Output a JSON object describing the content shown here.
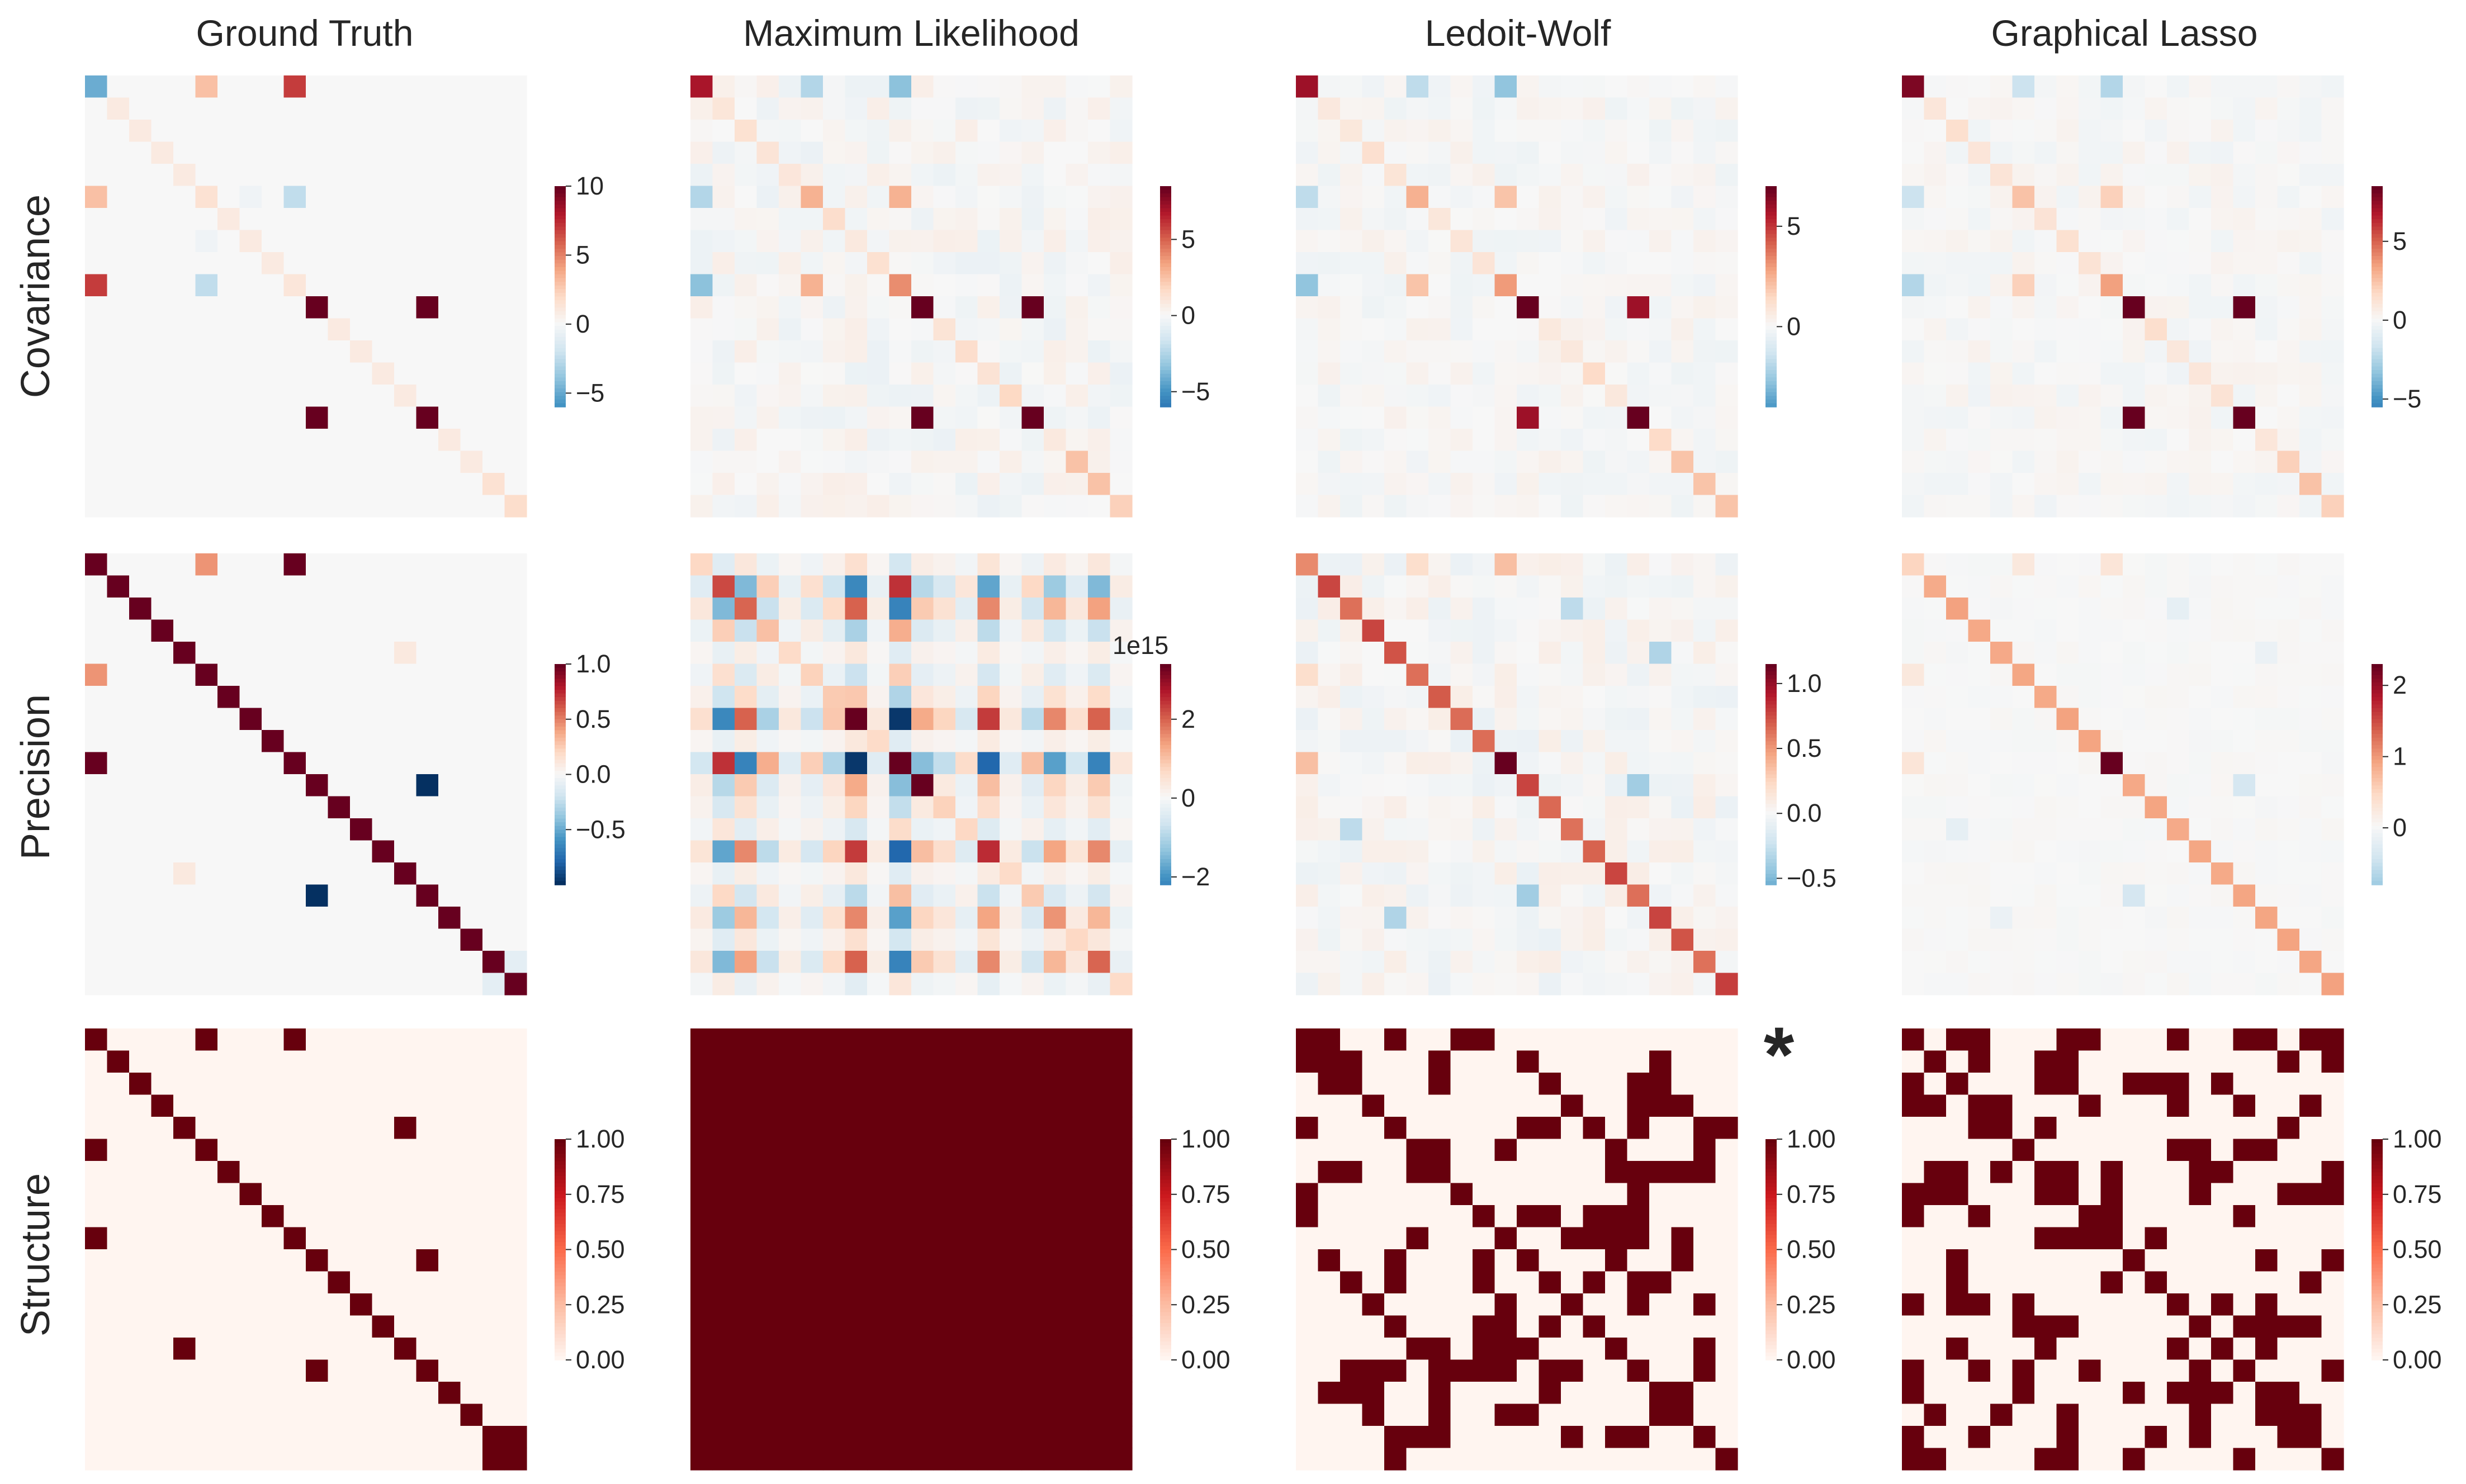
{
  "figure": {
    "column_titles": [
      "Ground Truth",
      "Maximum Likelihood",
      "Ledoit-Wolf",
      "Graphical Lasso"
    ],
    "row_labels": [
      "Covariance",
      "Precision",
      "Structure"
    ],
    "annotation": "*",
    "colormap": "RdBu_r"
  },
  "chart_data": [
    {
      "type": "heatmap",
      "row": "Covariance",
      "column": "Ground Truth",
      "vmin": -6,
      "vmax": 10,
      "colorbar_ticks": [
        {
          "v": 10,
          "label": "10"
        },
        {
          "v": 5,
          "label": "5"
        },
        {
          "v": 0,
          "label": "0"
        },
        {
          "v": -5,
          "label": "−5"
        }
      ],
      "colorbar_offset_label": "",
      "diag": 0.9,
      "entries": [
        {
          "i": 0,
          "j": 0,
          "v": -5
        },
        {
          "i": 0,
          "j": 5,
          "v": 3
        },
        {
          "i": 0,
          "j": 9,
          "v": 7
        },
        {
          "i": 5,
          "j": 5,
          "v": 1.5
        },
        {
          "i": 5,
          "j": 9,
          "v": -2.5
        },
        {
          "i": 9,
          "j": 9,
          "v": 1.2
        },
        {
          "i": 10,
          "j": 10,
          "v": 18
        },
        {
          "i": 10,
          "j": 15,
          "v": 18
        },
        {
          "i": 15,
          "j": 15,
          "v": 18
        },
        {
          "i": 5,
          "j": 7,
          "v": -0.4
        },
        {
          "i": 19,
          "j": 19,
          "v": 1.8
        },
        {
          "i": 18,
          "j": 18,
          "v": 1.5
        }
      ]
    },
    {
      "type": "heatmap",
      "row": "Covariance",
      "column": "Maximum Likelihood",
      "vmin": -6,
      "vmax": 8.5,
      "colorbar_ticks": [
        {
          "v": 5,
          "label": "5"
        },
        {
          "v": 0,
          "label": "0"
        },
        {
          "v": -5,
          "label": "−5"
        }
      ],
      "colorbar_offset_label": "",
      "diag": 1.2,
      "seed": 7,
      "noise": 0.55,
      "entries": [
        {
          "i": 0,
          "j": 0,
          "v": 7
        },
        {
          "i": 0,
          "j": 5,
          "v": -2.5
        },
        {
          "i": 0,
          "j": 9,
          "v": -3.5
        },
        {
          "i": 5,
          "j": 5,
          "v": 3
        },
        {
          "i": 5,
          "j": 9,
          "v": 3
        },
        {
          "i": 9,
          "j": 9,
          "v": 4
        },
        {
          "i": 10,
          "j": 10,
          "v": 10
        },
        {
          "i": 10,
          "j": 15,
          "v": 10
        },
        {
          "i": 15,
          "j": 15,
          "v": 10
        },
        {
          "i": 17,
          "j": 17,
          "v": 2.5
        },
        {
          "i": 18,
          "j": 18,
          "v": 2.5
        },
        {
          "i": 19,
          "j": 19,
          "v": 2
        }
      ]
    },
    {
      "type": "heatmap",
      "row": "Covariance",
      "column": "Ledoit-Wolf",
      "vmin": -4,
      "vmax": 7,
      "colorbar_ticks": [
        {
          "v": 5,
          "label": "5"
        },
        {
          "v": 0,
          "label": "0"
        }
      ],
      "colorbar_offset_label": "",
      "diag": 1.0,
      "seed": 11,
      "noise": 0.35,
      "entries": [
        {
          "i": 0,
          "j": 0,
          "v": 6
        },
        {
          "i": 0,
          "j": 5,
          "v": -1.8
        },
        {
          "i": 0,
          "j": 9,
          "v": -2.8
        },
        {
          "i": 5,
          "j": 5,
          "v": 2.5
        },
        {
          "i": 5,
          "j": 9,
          "v": 2
        },
        {
          "i": 9,
          "j": 9,
          "v": 3
        },
        {
          "i": 10,
          "j": 10,
          "v": 8
        },
        {
          "i": 10,
          "j": 15,
          "v": 6
        },
        {
          "i": 15,
          "j": 15,
          "v": 7
        },
        {
          "i": 17,
          "j": 17,
          "v": 2
        },
        {
          "i": 18,
          "j": 18,
          "v": 2
        },
        {
          "i": 19,
          "j": 19,
          "v": 2
        }
      ]
    },
    {
      "type": "heatmap",
      "row": "Covariance",
      "column": "Graphical Lasso",
      "vmin": -5.5,
      "vmax": 8.5,
      "colorbar_ticks": [
        {
          "v": 5,
          "label": "5"
        },
        {
          "v": 0,
          "label": "0"
        },
        {
          "v": -5,
          "label": "−5"
        }
      ],
      "colorbar_offset_label": "",
      "diag": 1.1,
      "seed": 23,
      "noise": 0.35,
      "entries": [
        {
          "i": 0,
          "j": 0,
          "v": 8
        },
        {
          "i": 0,
          "j": 5,
          "v": -1.8
        },
        {
          "i": 0,
          "j": 9,
          "v": -2.5
        },
        {
          "i": 5,
          "j": 5,
          "v": 2.5
        },
        {
          "i": 5,
          "j": 9,
          "v": 2
        },
        {
          "i": 9,
          "j": 9,
          "v": 3.5
        },
        {
          "i": 10,
          "j": 10,
          "v": 10
        },
        {
          "i": 10,
          "j": 15,
          "v": 9
        },
        {
          "i": 15,
          "j": 15,
          "v": 9
        },
        {
          "i": 17,
          "j": 17,
          "v": 2
        },
        {
          "i": 18,
          "j": 18,
          "v": 2.5
        },
        {
          "i": 19,
          "j": 19,
          "v": 2
        }
      ]
    },
    {
      "type": "heatmap",
      "row": "Precision",
      "column": "Ground Truth",
      "vmin": -1,
      "vmax": 1,
      "colorbar_ticks": [
        {
          "v": 1,
          "label": "1.0"
        },
        {
          "v": 0.5,
          "label": "0.5"
        },
        {
          "v": 0,
          "label": "0.0"
        },
        {
          "v": -0.5,
          "label": "−0.5"
        }
      ],
      "colorbar_offset_label": "",
      "diag": 1.0,
      "entries": [
        {
          "i": 0,
          "j": 5,
          "v": 0.45
        },
        {
          "i": 0,
          "j": 9,
          "v": 1
        },
        {
          "i": 10,
          "j": 15,
          "v": -1
        },
        {
          "i": 4,
          "j": 14,
          "v": 0.1
        },
        {
          "i": 18,
          "j": 19,
          "v": -0.1
        }
      ]
    },
    {
      "type": "heatmap",
      "row": "Precision",
      "column": "Maximum Likelihood",
      "vmin": -2.2,
      "vmax": 3.4,
      "colorbar_ticks": [
        {
          "v": 2,
          "label": "2"
        },
        {
          "v": 0,
          "label": "0"
        },
        {
          "v": -2,
          "label": "−2"
        }
      ],
      "colorbar_offset_label": "1e15",
      "diag": 0.3,
      "seed": 29,
      "noise": 0.15,
      "entries": []
    },
    {
      "type": "heatmap",
      "row": "Precision",
      "column": "Ledoit-Wolf",
      "vmin": -0.55,
      "vmax": 1.15,
      "colorbar_ticks": [
        {
          "v": 1,
          "label": "1.0"
        },
        {
          "v": 0.5,
          "label": "0.5"
        },
        {
          "v": 0,
          "label": "0.0"
        },
        {
          "v": -0.5,
          "label": "−0.5"
        }
      ],
      "colorbar_offset_label": "",
      "diag": 0.7,
      "seed": 31,
      "noise": 0.08,
      "entries": [
        {
          "i": 0,
          "j": 0,
          "v": 0.55
        },
        {
          "i": 0,
          "j": 5,
          "v": 0.2
        },
        {
          "i": 0,
          "j": 9,
          "v": 0.35
        },
        {
          "i": 9,
          "j": 9,
          "v": 1.15
        },
        {
          "i": 10,
          "j": 15,
          "v": -0.4
        },
        {
          "i": 4,
          "j": 16,
          "v": -0.35
        },
        {
          "i": 2,
          "j": 12,
          "v": -0.3
        },
        {
          "i": 19,
          "j": 19,
          "v": 0.8
        }
      ]
    },
    {
      "type": "heatmap",
      "row": "Precision",
      "column": "Graphical Lasso",
      "vmin": -0.8,
      "vmax": 2.3,
      "colorbar_ticks": [
        {
          "v": 2,
          "label": "2"
        },
        {
          "v": 1,
          "label": "1"
        },
        {
          "v": 0,
          "label": "0"
        }
      ],
      "colorbar_offset_label": "",
      "diag": 0.9,
      "seed": 37,
      "noise": 0.04,
      "entries": [
        {
          "i": 0,
          "j": 0,
          "v": 0.5
        },
        {
          "i": 0,
          "j": 5,
          "v": 0.25
        },
        {
          "i": 0,
          "j": 9,
          "v": 0.3
        },
        {
          "i": 9,
          "j": 9,
          "v": 2.3
        },
        {
          "i": 10,
          "j": 15,
          "v": -0.4
        },
        {
          "i": 2,
          "j": 12,
          "v": -0.2
        },
        {
          "i": 4,
          "j": 16,
          "v": -0.15
        }
      ]
    },
    {
      "type": "heatmap",
      "row": "Structure",
      "column": "Ground Truth",
      "vmin": 0,
      "vmax": 1,
      "colorbar_ticks": [
        {
          "v": 1,
          "label": "1.00"
        },
        {
          "v": 0.75,
          "label": "0.75"
        },
        {
          "v": 0.5,
          "label": "0.50"
        },
        {
          "v": 0.25,
          "label": "0.25"
        },
        {
          "v": 0,
          "label": "0.00"
        }
      ],
      "colorbar_offset_label": "",
      "pattern": "ground_truth",
      "edges": [
        [
          0,
          5
        ],
        [
          0,
          9
        ],
        [
          10,
          15
        ],
        [
          4,
          14
        ],
        [
          18,
          19
        ]
      ]
    },
    {
      "type": "heatmap",
      "row": "Structure",
      "column": "Maximum Likelihood",
      "vmin": 0,
      "vmax": 1,
      "colorbar_ticks": [
        {
          "v": 1,
          "label": "1.00"
        },
        {
          "v": 0.75,
          "label": "0.75"
        },
        {
          "v": 0.5,
          "label": "0.50"
        },
        {
          "v": 0.25,
          "label": "0.25"
        },
        {
          "v": 0,
          "label": "0.00"
        }
      ],
      "colorbar_offset_label": "",
      "pattern": "full"
    },
    {
      "type": "heatmap",
      "row": "Structure",
      "column": "Ledoit-Wolf",
      "vmin": 0,
      "vmax": 1,
      "colorbar_ticks": [
        {
          "v": 1,
          "label": "1.00"
        },
        {
          "v": 0.75,
          "label": "0.75"
        },
        {
          "v": 0.5,
          "label": "0.50"
        },
        {
          "v": 0.25,
          "label": "0.25"
        },
        {
          "v": 0,
          "label": "0.00"
        }
      ],
      "colorbar_offset_label": "",
      "pattern": "random",
      "seed": 41,
      "density": 0.27
    },
    {
      "type": "heatmap",
      "row": "Structure",
      "column": "Graphical Lasso",
      "vmin": 0,
      "vmax": 1,
      "colorbar_ticks": [
        {
          "v": 1,
          "label": "1.00"
        },
        {
          "v": 0.75,
          "label": "0.75"
        },
        {
          "v": 0.5,
          "label": "0.50"
        },
        {
          "v": 0.25,
          "label": "0.25"
        },
        {
          "v": 0,
          "label": "0.00"
        }
      ],
      "colorbar_offset_label": "",
      "pattern": "random",
      "seed": 53,
      "density": 0.24
    }
  ]
}
